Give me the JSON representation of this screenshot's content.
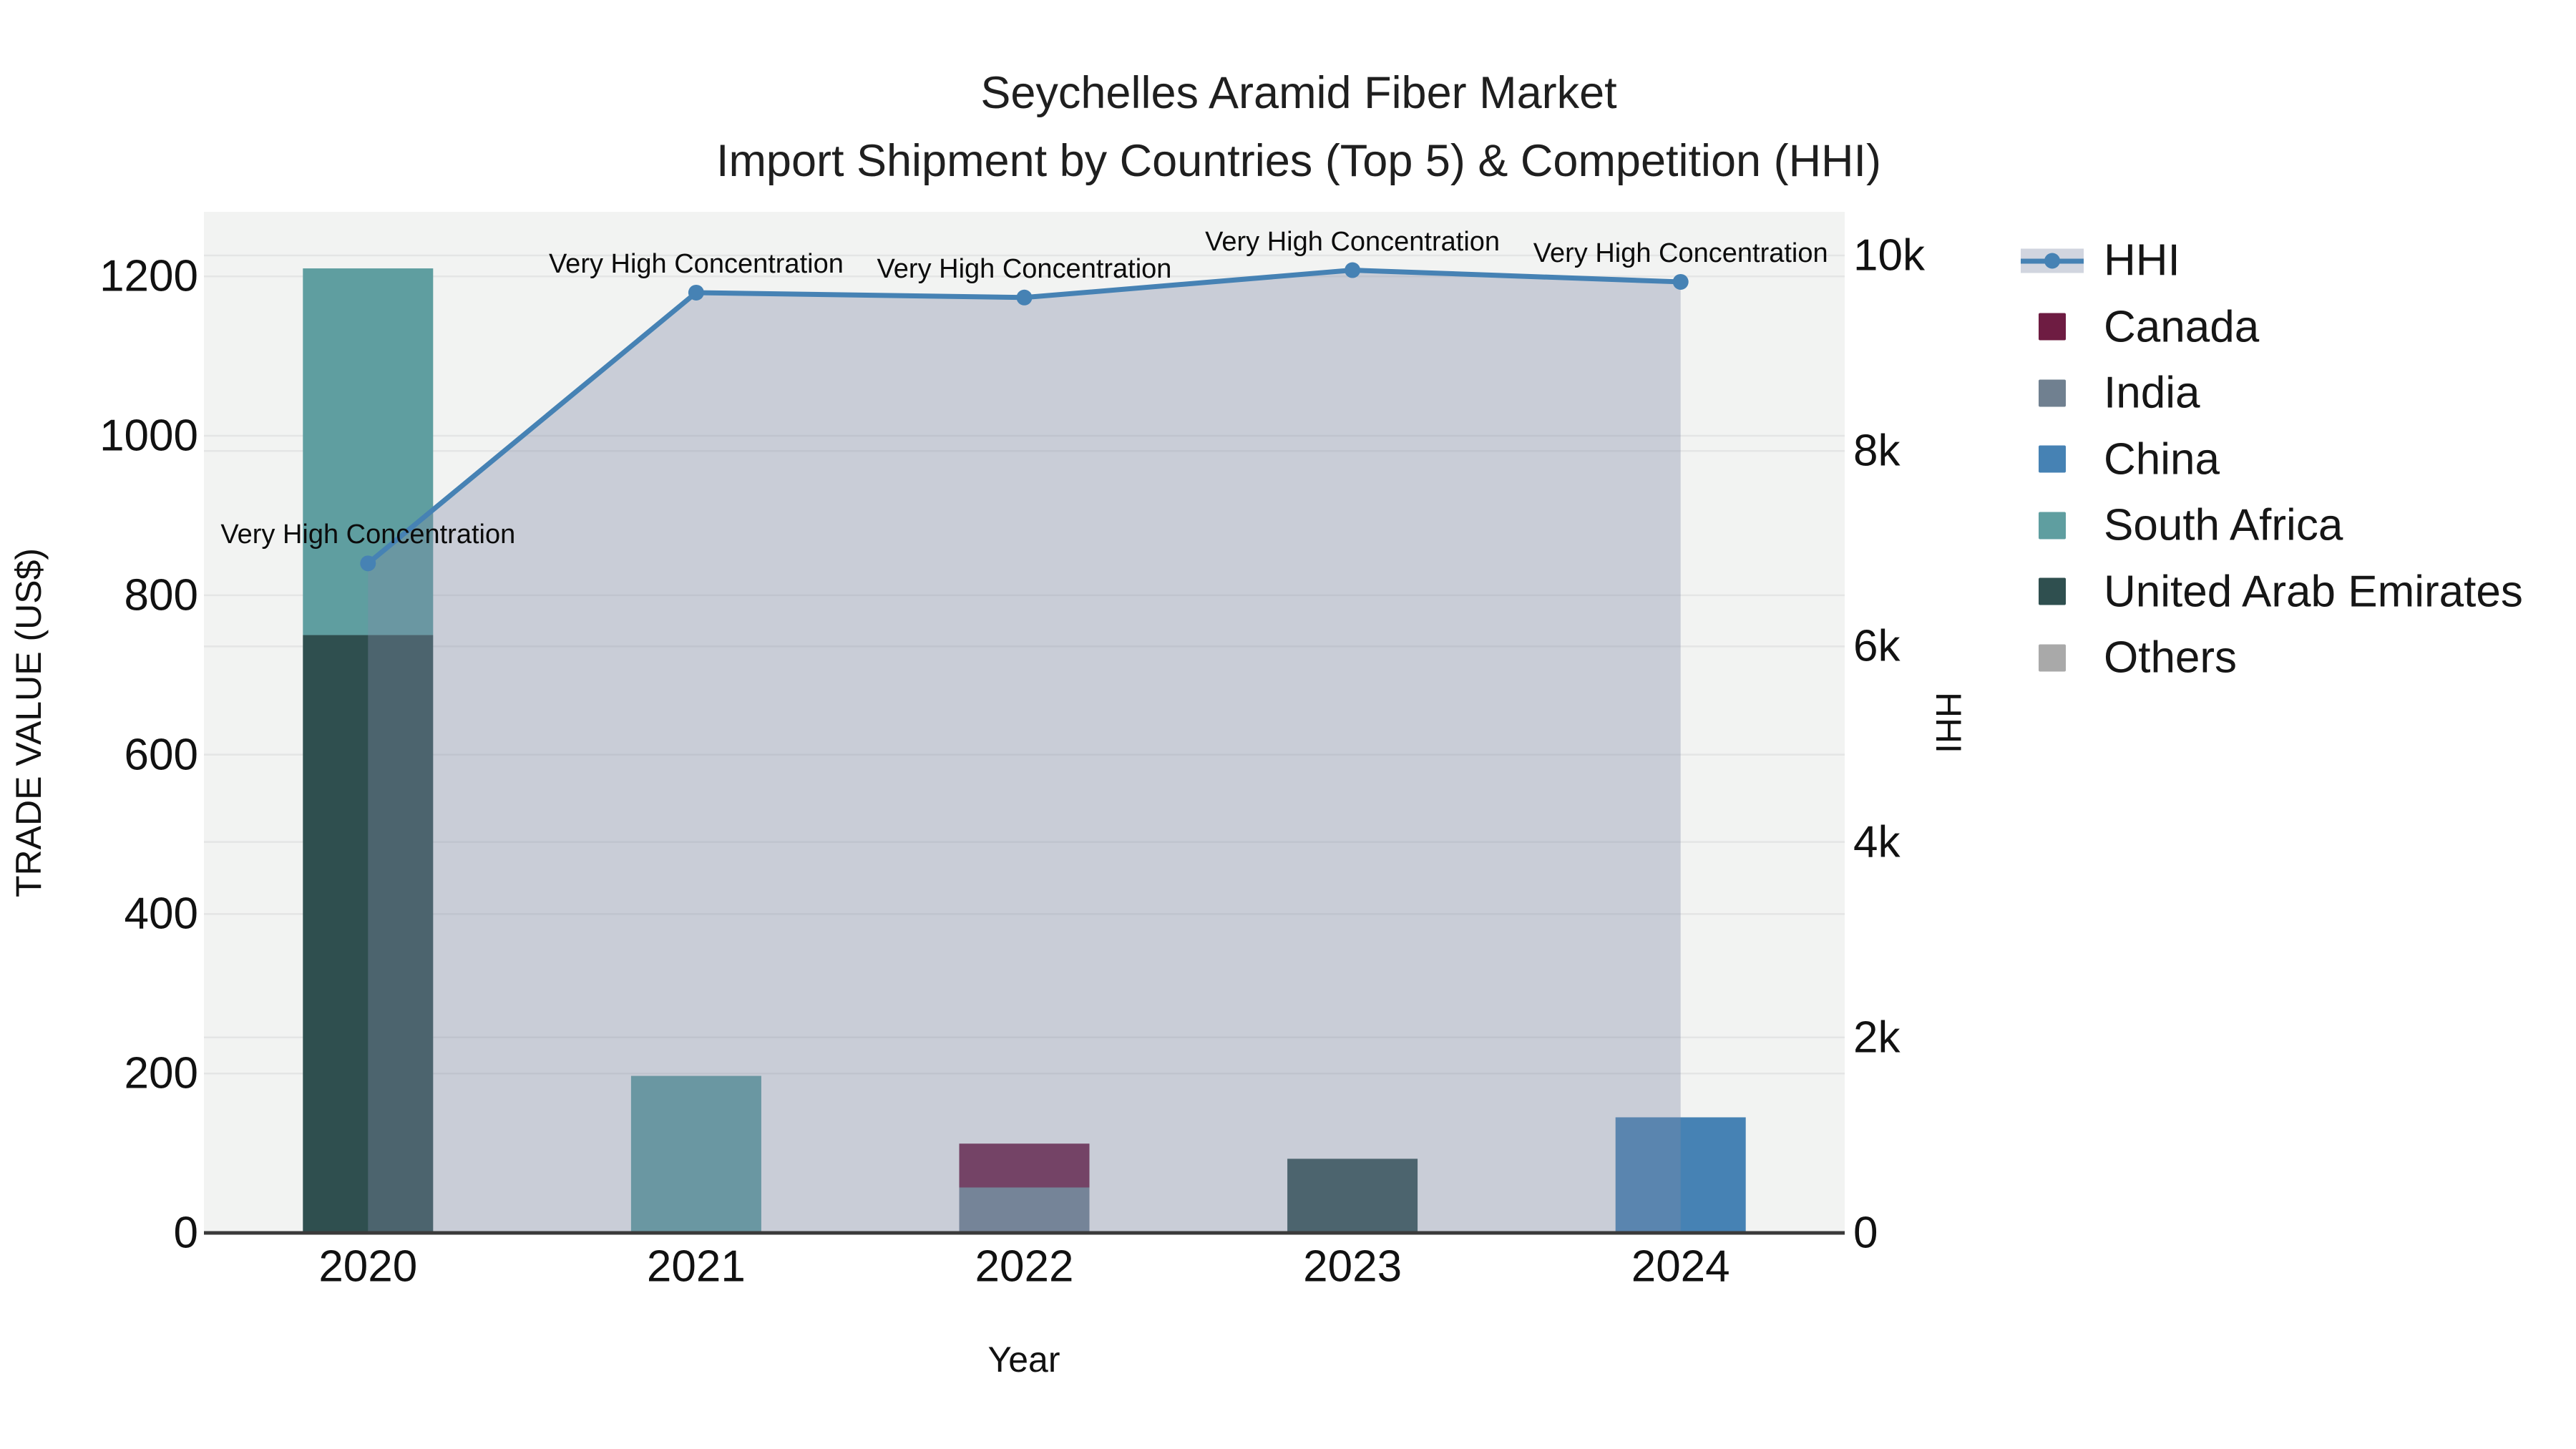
{
  "title": {
    "line1": "Seychelles Aramid Fiber Market",
    "line2": "Import Shipment by Countries (Top 5) & Competition (HHI)"
  },
  "axes": {
    "x": {
      "title": "Year",
      "categories": [
        "2020",
        "2021",
        "2022",
        "2023",
        "2024"
      ]
    },
    "y1": {
      "title": "TRADE VALUE (US$)",
      "ticks": [
        "0",
        "200",
        "400",
        "600",
        "800",
        "1000",
        "1200"
      ],
      "tick_values": [
        0,
        200,
        400,
        600,
        800,
        1000,
        1200
      ],
      "range": [
        0,
        1281
      ]
    },
    "y2": {
      "title": "HHI",
      "ticks": [
        "0",
        "2k",
        "4k",
        "6k",
        "8k",
        "10k"
      ],
      "tick_values": [
        0,
        2000,
        4000,
        6000,
        8000,
        10000
      ],
      "range": [
        0,
        10447
      ]
    }
  },
  "chart_data": {
    "type": "bar",
    "subtype": "stacked bars (left axis) + line with area fill (right axis)",
    "title": "Seychelles Aramid Fiber Market Import Shipment by Countries (Top 5) & Competition (HHI)",
    "xlabel": "Year",
    "ylabel": "TRADE VALUE (US$)",
    "y2label": "HHI",
    "categories": [
      "2020",
      "2021",
      "2022",
      "2023",
      "2024"
    ],
    "series": [
      {
        "name": "Canada",
        "color": "#6e1c42",
        "values": [
          0,
          0,
          55,
          0,
          0
        ]
      },
      {
        "name": "India",
        "color": "#708090",
        "values": [
          0,
          0,
          57,
          0,
          0
        ]
      },
      {
        "name": "China",
        "color": "#4682b4",
        "values": [
          0,
          0,
          0,
          0,
          145
        ]
      },
      {
        "name": "South Africa",
        "color": "#5f9ea0",
        "values": [
          460,
          197,
          0,
          0,
          0
        ]
      },
      {
        "name": "United Arab Emirates",
        "color": "#2f4f4f",
        "values": [
          750,
          0,
          0,
          93,
          0
        ]
      },
      {
        "name": "Others",
        "color": "#a9a9a9",
        "values": [
          0,
          0,
          0,
          0,
          0
        ]
      }
    ],
    "stack_order": [
      "Others",
      "United Arab Emirates",
      "South Africa",
      "China",
      "India",
      "Canada"
    ],
    "hhi": {
      "name": "HHI",
      "color": "#4682b4",
      "area_fill": "rgba(128,139,167,0.36)",
      "values": [
        6850,
        9620,
        9570,
        9850,
        9730
      ]
    },
    "annotations": [
      "Very High Concentration",
      "Very High Concentration",
      "Very High Concentration",
      "Very High Concentration",
      "Very High Concentration"
    ],
    "grid": "on",
    "plot_background": "#f2f3f2",
    "gridline_color": "#e4e5e5",
    "zeroline_color": "#3a3a3a",
    "legend_position": "right"
  },
  "legend": {
    "items": [
      "HHI",
      "Canada",
      "India",
      "China",
      "South Africa",
      "United Arab Emirates",
      "Others"
    ]
  }
}
